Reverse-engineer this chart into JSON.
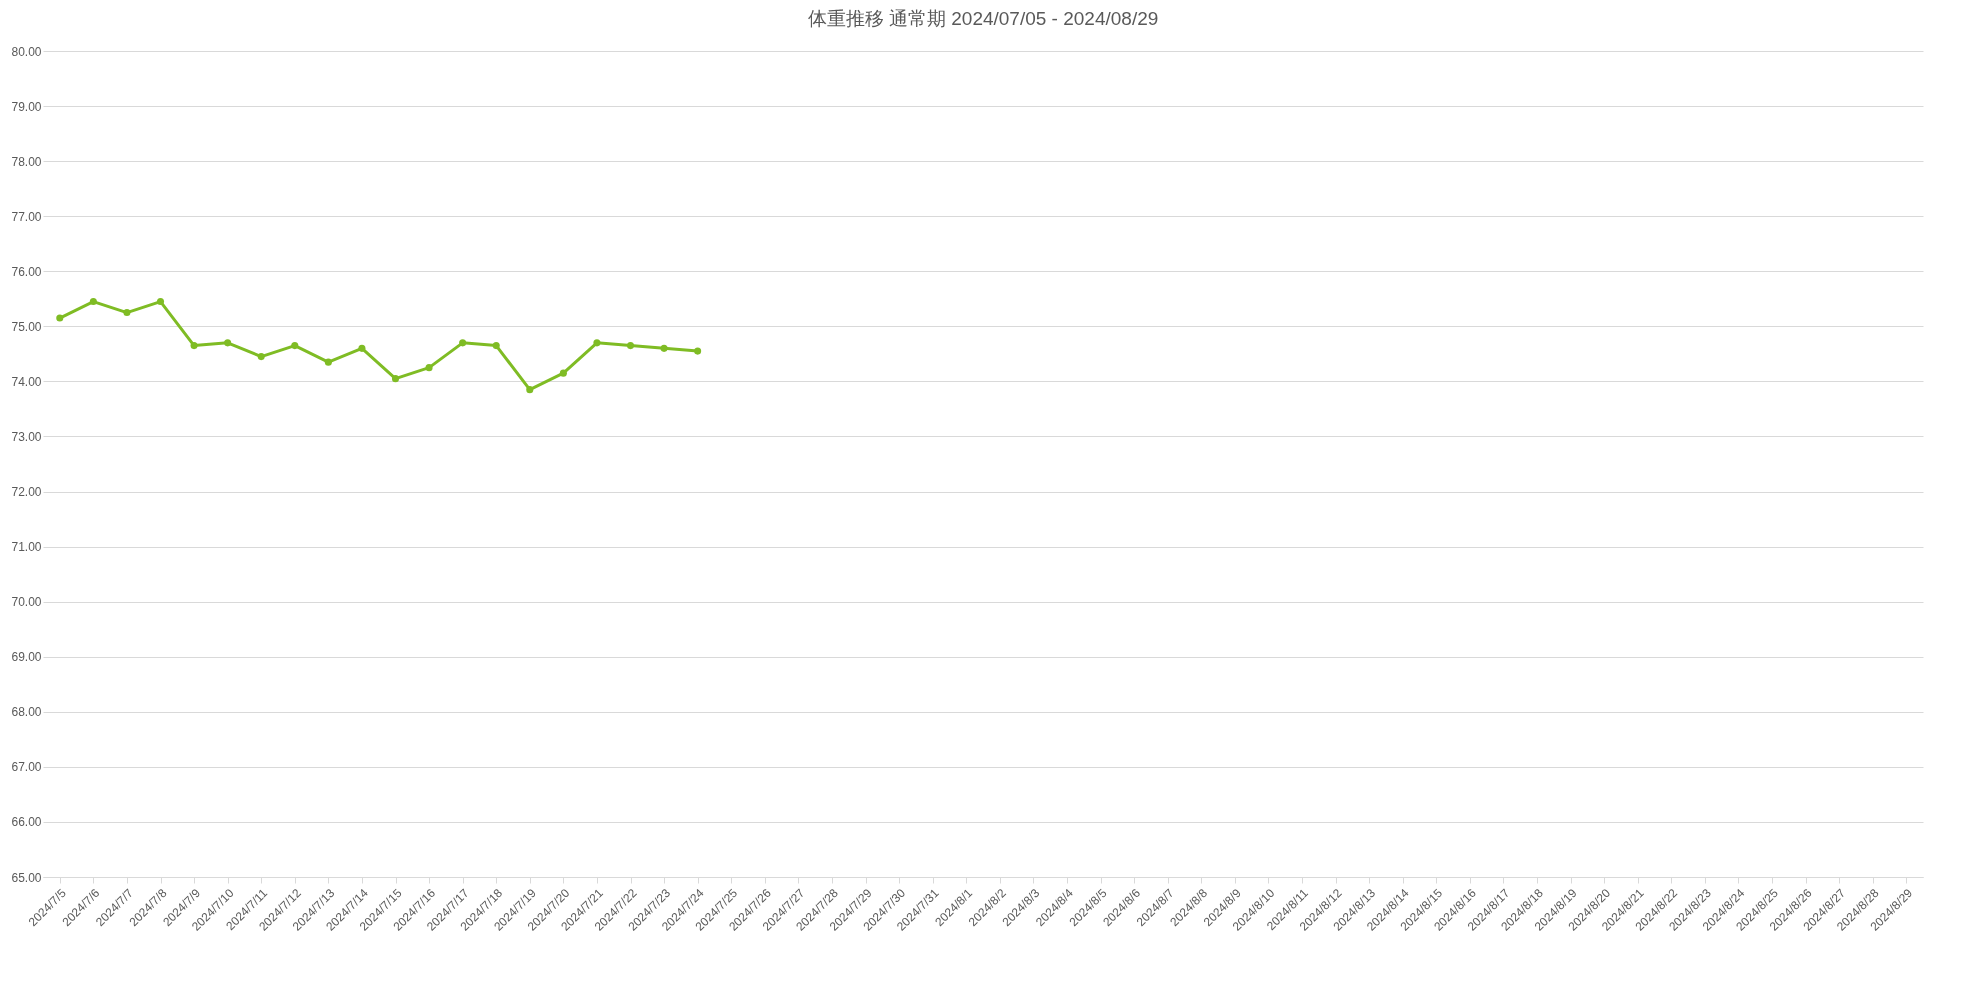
{
  "chart_data": {
    "type": "line",
    "title": "体重推移 通常期 2024/07/05 - 2024/08/29",
    "categories": [
      "2024/7/5",
      "2024/7/6",
      "2024/7/7",
      "2024/7/8",
      "2024/7/9",
      "2024/7/10",
      "2024/7/11",
      "2024/7/12",
      "2024/7/13",
      "2024/7/14",
      "2024/7/15",
      "2024/7/16",
      "2024/7/17",
      "2024/7/18",
      "2024/7/19",
      "2024/7/20",
      "2024/7/21",
      "2024/7/22",
      "2024/7/23",
      "2024/7/24",
      "2024/7/25",
      "2024/7/26",
      "2024/7/27",
      "2024/7/28",
      "2024/7/29",
      "2024/7/30",
      "2024/7/31",
      "2024/8/1",
      "2024/8/2",
      "2024/8/3",
      "2024/8/4",
      "2024/8/5",
      "2024/8/6",
      "2024/8/7",
      "2024/8/8",
      "2024/8/9",
      "2024/8/10",
      "2024/8/11",
      "2024/8/12",
      "2024/8/13",
      "2024/8/14",
      "2024/8/15",
      "2024/8/16",
      "2024/8/17",
      "2024/8/18",
      "2024/8/19",
      "2024/8/20",
      "2024/8/21",
      "2024/8/22",
      "2024/8/23",
      "2024/8/24",
      "2024/8/25",
      "2024/8/26",
      "2024/8/27",
      "2024/8/28",
      "2024/8/29"
    ],
    "series": [
      {
        "color": "#7fbc24",
        "values": [
          75.15,
          75.45,
          75.25,
          75.45,
          74.65,
          74.7,
          74.45,
          74.65,
          74.35,
          74.6,
          74.05,
          74.25,
          74.7,
          74.65,
          73.85,
          74.15,
          74.7,
          74.65,
          74.6,
          74.55,
          null,
          null,
          null,
          null,
          null,
          null,
          null,
          null,
          null,
          null,
          null,
          null,
          null,
          null,
          null,
          null,
          null,
          null,
          null,
          null,
          null,
          null,
          null,
          null,
          null,
          null,
          null,
          null,
          null,
          null,
          null,
          null,
          null,
          null,
          null,
          null
        ]
      }
    ],
    "ylim": [
      65,
      80
    ],
    "yticks": [
      {
        "value": 65,
        "label": "65.00"
      },
      {
        "value": 66,
        "label": "66.00"
      },
      {
        "value": 67,
        "label": "67.00"
      },
      {
        "value": 68,
        "label": "68.00"
      },
      {
        "value": 69,
        "label": "69.00"
      },
      {
        "value": 70,
        "label": "70.00"
      },
      {
        "value": 71,
        "label": "71.00"
      },
      {
        "value": 72,
        "label": "72.00"
      },
      {
        "value": 73,
        "label": "73.00"
      },
      {
        "value": 74,
        "label": "74.00"
      },
      {
        "value": 75,
        "label": "75.00"
      },
      {
        "value": 76,
        "label": "76.00"
      },
      {
        "value": 77,
        "label": "77.00"
      },
      {
        "value": 78,
        "label": "78.00"
      },
      {
        "value": 79,
        "label": "79.00"
      },
      {
        "value": 80,
        "label": "80.00"
      }
    ],
    "grid": "y",
    "marker": "circle",
    "line_style": "solid"
  }
}
